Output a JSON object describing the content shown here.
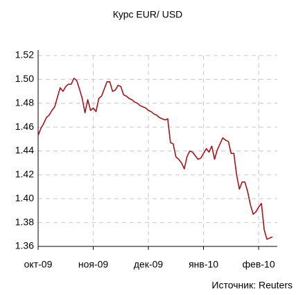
{
  "chart_data": {
    "type": "line",
    "title": "Курс EUR/ USD",
    "source": "Источник: Reuters",
    "categories": [
      "окт-09",
      null,
      null,
      null,
      null,
      null,
      null,
      null,
      null,
      null,
      null,
      null,
      null,
      null,
      null,
      null,
      null,
      null,
      null,
      null,
      "ноя-09",
      null,
      null,
      null,
      null,
      null,
      null,
      null,
      null,
      null,
      null,
      null,
      null,
      null,
      null,
      null,
      null,
      null,
      null,
      null,
      "дек-09",
      null,
      null,
      null,
      null,
      null,
      null,
      null,
      null,
      null,
      null,
      null,
      null,
      null,
      null,
      null,
      null,
      null,
      null,
      null,
      "янв-10",
      null,
      null,
      null,
      null,
      null,
      null,
      null,
      null,
      null,
      null,
      null,
      null,
      null,
      null,
      null,
      null,
      null,
      null,
      null,
      "фев-10",
      null,
      null,
      null,
      null,
      null
    ],
    "values": [
      1.453,
      1.459,
      1.463,
      1.468,
      1.47,
      1.474,
      1.477,
      1.485,
      1.493,
      1.49,
      1.494,
      1.496,
      1.496,
      1.501,
      1.499,
      1.492,
      1.484,
      1.472,
      1.483,
      1.474,
      1.476,
      1.473,
      1.484,
      1.486,
      1.492,
      1.498,
      1.498,
      1.49,
      1.491,
      1.495,
      1.494,
      1.487,
      1.486,
      1.484,
      1.483,
      1.481,
      1.48,
      1.478,
      1.477,
      1.476,
      1.474,
      1.473,
      1.471,
      1.47,
      1.468,
      1.467,
      1.466,
      1.467,
      1.447,
      1.446,
      1.435,
      1.433,
      1.43,
      1.425,
      1.435,
      1.44,
      1.439,
      1.436,
      1.433,
      1.434,
      1.438,
      1.442,
      1.439,
      1.444,
      1.433,
      1.441,
      1.446,
      1.451,
      1.449,
      1.448,
      1.438,
      1.438,
      1.42,
      1.408,
      1.414,
      1.414,
      1.406,
      1.395,
      1.387,
      1.389,
      1.393,
      1.396,
      1.374,
      1.366,
      1.367,
      1.368
    ],
    "color": "#a0151c",
    "ylim": [
      1.36,
      1.52
    ],
    "yticks": [
      1.36,
      1.38,
      {
        "value": 1.4,
        "label": "1.40"
      },
      1.42,
      1.44,
      1.46,
      1.48,
      {
        "value": 1.5,
        "label": "1.50"
      },
      1.52
    ],
    "grid": true
  }
}
